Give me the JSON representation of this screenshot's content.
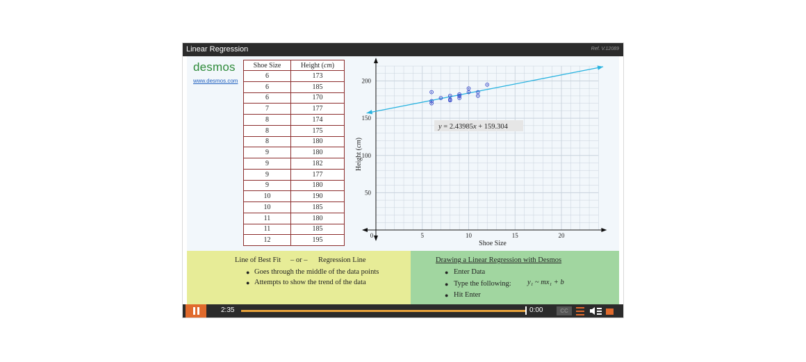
{
  "player": {
    "title": "Linear Regression",
    "ref": "Ref. V.12089"
  },
  "logo": {
    "text": "desmos",
    "url_text": "www.desmos.com"
  },
  "table": {
    "headers": [
      "Shoe Size",
      "Height (cm)"
    ],
    "header_height_word": "Height",
    "header_height_unit": "cm",
    "rows": [
      [
        "6",
        "173"
      ],
      [
        "6",
        "185"
      ],
      [
        "6",
        "170"
      ],
      [
        "7",
        "177"
      ],
      [
        "8",
        "174"
      ],
      [
        "8",
        "175"
      ],
      [
        "8",
        "180"
      ],
      [
        "9",
        "180"
      ],
      [
        "9",
        "182"
      ],
      [
        "9",
        "177"
      ],
      [
        "9",
        "180"
      ],
      [
        "10",
        "190"
      ],
      [
        "10",
        "185"
      ],
      [
        "11",
        "180"
      ],
      [
        "11",
        "185"
      ],
      [
        "12",
        "195"
      ]
    ]
  },
  "chart_data": {
    "type": "scatter",
    "xlabel": "Shoe Size",
    "ylabel_word": "Height",
    "ylabel_unit": "cm",
    "xlim": [
      0,
      24
    ],
    "ylim": [
      0,
      220
    ],
    "xticks": [
      0,
      5,
      10,
      15,
      20
    ],
    "xtick_labels": [
      "0",
      "5",
      "10",
      "15",
      "20"
    ],
    "yticks": [
      50,
      100,
      150,
      200
    ],
    "ytick_labels": [
      "50",
      "100",
      "150",
      "200"
    ],
    "points": [
      [
        6,
        173
      ],
      [
        6,
        185
      ],
      [
        6,
        170
      ],
      [
        7,
        177
      ],
      [
        8,
        174
      ],
      [
        8,
        175
      ],
      [
        8,
        180
      ],
      [
        9,
        180
      ],
      [
        9,
        182
      ],
      [
        9,
        177
      ],
      [
        9,
        180
      ],
      [
        10,
        190
      ],
      [
        10,
        185
      ],
      [
        11,
        180
      ],
      [
        11,
        185
      ],
      [
        12,
        195
      ]
    ],
    "regression": {
      "slope": 2.43985,
      "intercept": 159.304
    },
    "equation": {
      "lhs": "y",
      "mid": " = 2.43985",
      "var": "x",
      "rhs": " + 159.304"
    },
    "grid": true,
    "colors": {
      "points": "#3346c8",
      "line": "#29b3e0",
      "grid": "#c8d2dc"
    }
  },
  "left_panel": {
    "title_a": "Line of Best Fit",
    "title_or": "– or –",
    "title_b": "Regression Line",
    "bullets": [
      "Goes through the middle of the data points",
      "Attempts to show the trend of the data"
    ]
  },
  "right_panel": {
    "heading": "Drawing a Linear Regression with Desmos",
    "bullets": [
      "Enter Data",
      "Type the following:",
      "Hit Enter"
    ],
    "formula": "y₁ ~ mx₁ + b"
  },
  "controls": {
    "elapsed": "2:35",
    "remaining": "0:00",
    "cc_label": "CC",
    "progress": 1.0
  },
  "colors": {
    "accent": "#e06a2c",
    "seek": "#e8a23a",
    "left_panel": "#e7ec97",
    "right_panel": "#a1d6a0"
  }
}
